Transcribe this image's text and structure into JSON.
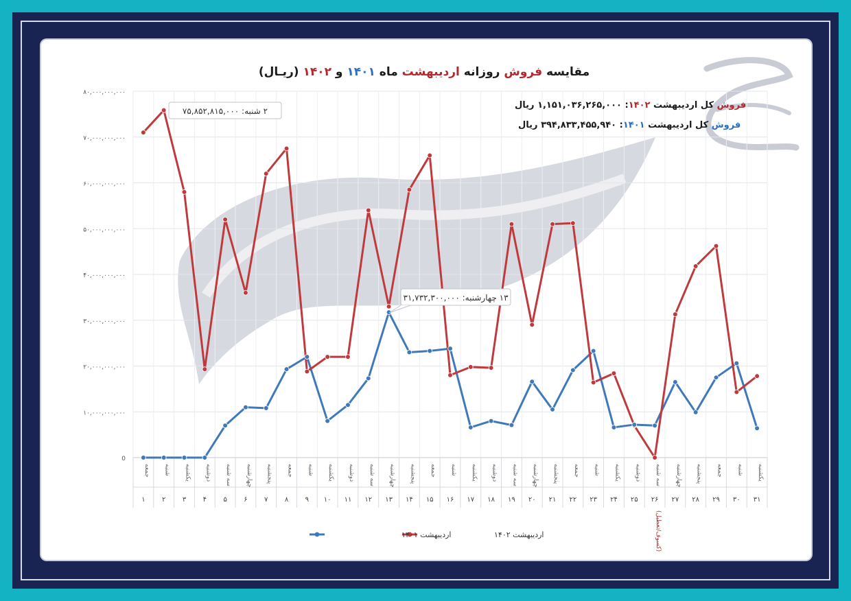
{
  "chart_data": {
    "type": "line",
    "title_parts": [
      {
        "text": "مقایسه ",
        "color": "#1b1b1b"
      },
      {
        "text": "فروش",
        "color": "#b3282d"
      },
      {
        "text": " روزانه ",
        "color": "#1b1b1b"
      },
      {
        "text": "اردیبهشت",
        "color": "#b3282d"
      },
      {
        "text": " ماه ",
        "color": "#1b1b1b"
      },
      {
        "text": "۱۴۰۱",
        "color": "#2a6fc0"
      },
      {
        "text": " و ",
        "color": "#1b1b1b"
      },
      {
        "text": "۱۴۰۲",
        "color": "#b3282d"
      },
      {
        "text": " (ریـال)",
        "color": "#1b1b1b"
      }
    ],
    "summary_1402_parts": [
      {
        "text": "فروش",
        "color": "#b3282d"
      },
      {
        "text": " کل اردیبهشت ",
        "color": "#1b1b1b"
      },
      {
        "text": "۱۴۰۲",
        "color": "#b3282d"
      },
      {
        "text": ": ۱,۱۵۱,۰۳۶,۲۶۵,۰۰۰ ریال",
        "color": "#1b1b1b"
      }
    ],
    "summary_1401_parts": [
      {
        "text": "فروش",
        "color": "#2a6fc0"
      },
      {
        "text": " کل اردیبهشت ",
        "color": "#1b1b1b"
      },
      {
        "text": "۱۴۰۱",
        "color": "#2a6fc0"
      },
      {
        "text": ": ۳۹۴,۸۳۳,۴۵۵,۹۴۰ ریال",
        "color": "#1b1b1b"
      }
    ],
    "callout_max": "۲ شنبه: ۷۵,۸۵۲,۸۱۵,۰۰۰",
    "callout_1401": "۱۳ چهارشنبه: ۳۱,۷۳۲,۳۰۰,۰۰۰",
    "y_ticks": [
      "0",
      "۱۰,۰۰۰,۰۰۰,۰۰۰",
      "۲۰,۰۰۰,۰۰۰,۰۰۰",
      "۳۰,۰۰۰,۰۰۰,۰۰۰",
      "۴۰,۰۰۰,۰۰۰,۰۰۰",
      "۵۰,۰۰۰,۰۰۰,۰۰۰",
      "۶۰,۰۰۰,۰۰۰,۰۰۰",
      "۷۰,۰۰۰,۰۰۰,۰۰۰",
      "۸۰,۰۰۰,۰۰۰,۰۰۰"
    ],
    "ylim": [
      0,
      80000000000
    ],
    "day_names": [
      "جمعه",
      "شنبه",
      "یکشنبه",
      "دوشنبه",
      "سه شنبه",
      "چهارشنبه",
      "پنجشنبه",
      "جمعه",
      "شنبه",
      "یکشنبه",
      "دوشنبه",
      "سه شنبه",
      "چهارشنبه",
      "پنجشنبه",
      "جمعه",
      "شنبه",
      "یکشنبه",
      "دوشنبه",
      "سه شنبه",
      "چهارشنبه",
      "پنجشنبه",
      "جمعه",
      "شنبه",
      "یکشنبه",
      "دوشنبه",
      "سه شنبه",
      "چهارشنبه",
      "پنجشنبه",
      "جمعه",
      "شنبه",
      "یکشنبه"
    ],
    "day_numbers": [
      "۱",
      "۲",
      "۳",
      "۴",
      "۵",
      "۶",
      "۷",
      "۸",
      "۹",
      "۱۰",
      "۱۱",
      "۱۲",
      "۱۳",
      "۱۴",
      "۱۵",
      "۱۶",
      "۱۷",
      "۱۸",
      "۱۹",
      "۲۰",
      "۲۱",
      "۲۲",
      "۲۳",
      "۲۴",
      "۲۵",
      "۲۶",
      "۲۷",
      "۲۸",
      "۲۹",
      "۳۰",
      "۳۱"
    ],
    "note_day26": "(کسوف/تعطیل)",
    "series": [
      {
        "name": "اردیبهشت ۱۴۰۲",
        "color": "#bf3a3d",
        "values": [
          71000000000,
          75852815000,
          58000000000,
          19300000000,
          52000000000,
          36000000000,
          62000000000,
          67500000000,
          18800000000,
          22000000000,
          22000000000,
          54000000000,
          33000000000,
          58500000000,
          66000000000,
          18000000000,
          19800000000,
          19600000000,
          51000000000,
          29000000000,
          51000000000,
          51200000000,
          16400000000,
          18400000000,
          7000000000,
          0,
          31300000000,
          41800000000,
          46200000000,
          14300000000,
          17800000000
        ]
      },
      {
        "name": "اردیبهشت ۱۴۰۱",
        "color": "#3f79b9",
        "values": [
          0,
          0,
          0,
          0,
          7000000000,
          11000000000,
          10800000000,
          19300000000,
          22000000000,
          8000000000,
          11500000000,
          17300000000,
          31732300000,
          23000000000,
          23300000000,
          23800000000,
          6600000000,
          8000000000,
          7100000000,
          16600000000,
          10500000000,
          19100000000,
          23300000000,
          6600000000,
          7200000000,
          7000000000,
          16500000000,
          9900000000,
          17500000000,
          20600000000,
          6400000000
        ]
      }
    ]
  }
}
